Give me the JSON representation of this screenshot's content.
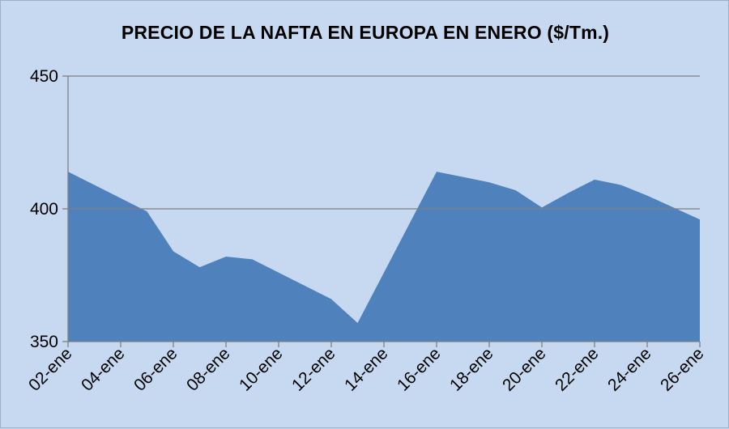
{
  "chart_data": {
    "type": "area",
    "title": "PRECIO DE LA NAFTA EN EUROPA EN ENERO ($/Tm.)",
    "xlabel": "",
    "ylabel": "",
    "ylim": [
      350,
      450
    ],
    "yticks": [
      350,
      400,
      450
    ],
    "grid": true,
    "x": [
      "02-ene",
      "03-ene",
      "04-ene",
      "05-ene",
      "06-ene",
      "07-ene",
      "08-ene",
      "09-ene",
      "10-ene",
      "11-ene",
      "12-ene",
      "13-ene",
      "14-ene",
      "15-ene",
      "16-ene",
      "17-ene",
      "18-ene",
      "19-ene",
      "20-ene",
      "21-ene",
      "22-ene",
      "23-ene",
      "24-ene",
      "25-ene",
      "26-ene"
    ],
    "xtick_labels": [
      "02-ene",
      "04-ene",
      "06-ene",
      "08-ene",
      "10-ene",
      "12-ene",
      "14-ene",
      "16-ene",
      "18-ene",
      "20-ene",
      "22-ene",
      "24-ene",
      "26-ene"
    ],
    "series": [
      {
        "name": "Nafta",
        "color": "#4f81bd",
        "values": [
          414,
          409,
          404,
          399,
          384,
          378,
          382,
          381,
          376,
          371,
          366,
          357,
          376,
          395,
          414,
          412,
          410,
          407,
          400.5,
          406,
          411,
          409,
          405,
          400.5,
          396
        ]
      }
    ]
  },
  "colors": {
    "background": "#c6d9f1",
    "area": "#4f81bd",
    "grid": "#7f7f7f"
  }
}
